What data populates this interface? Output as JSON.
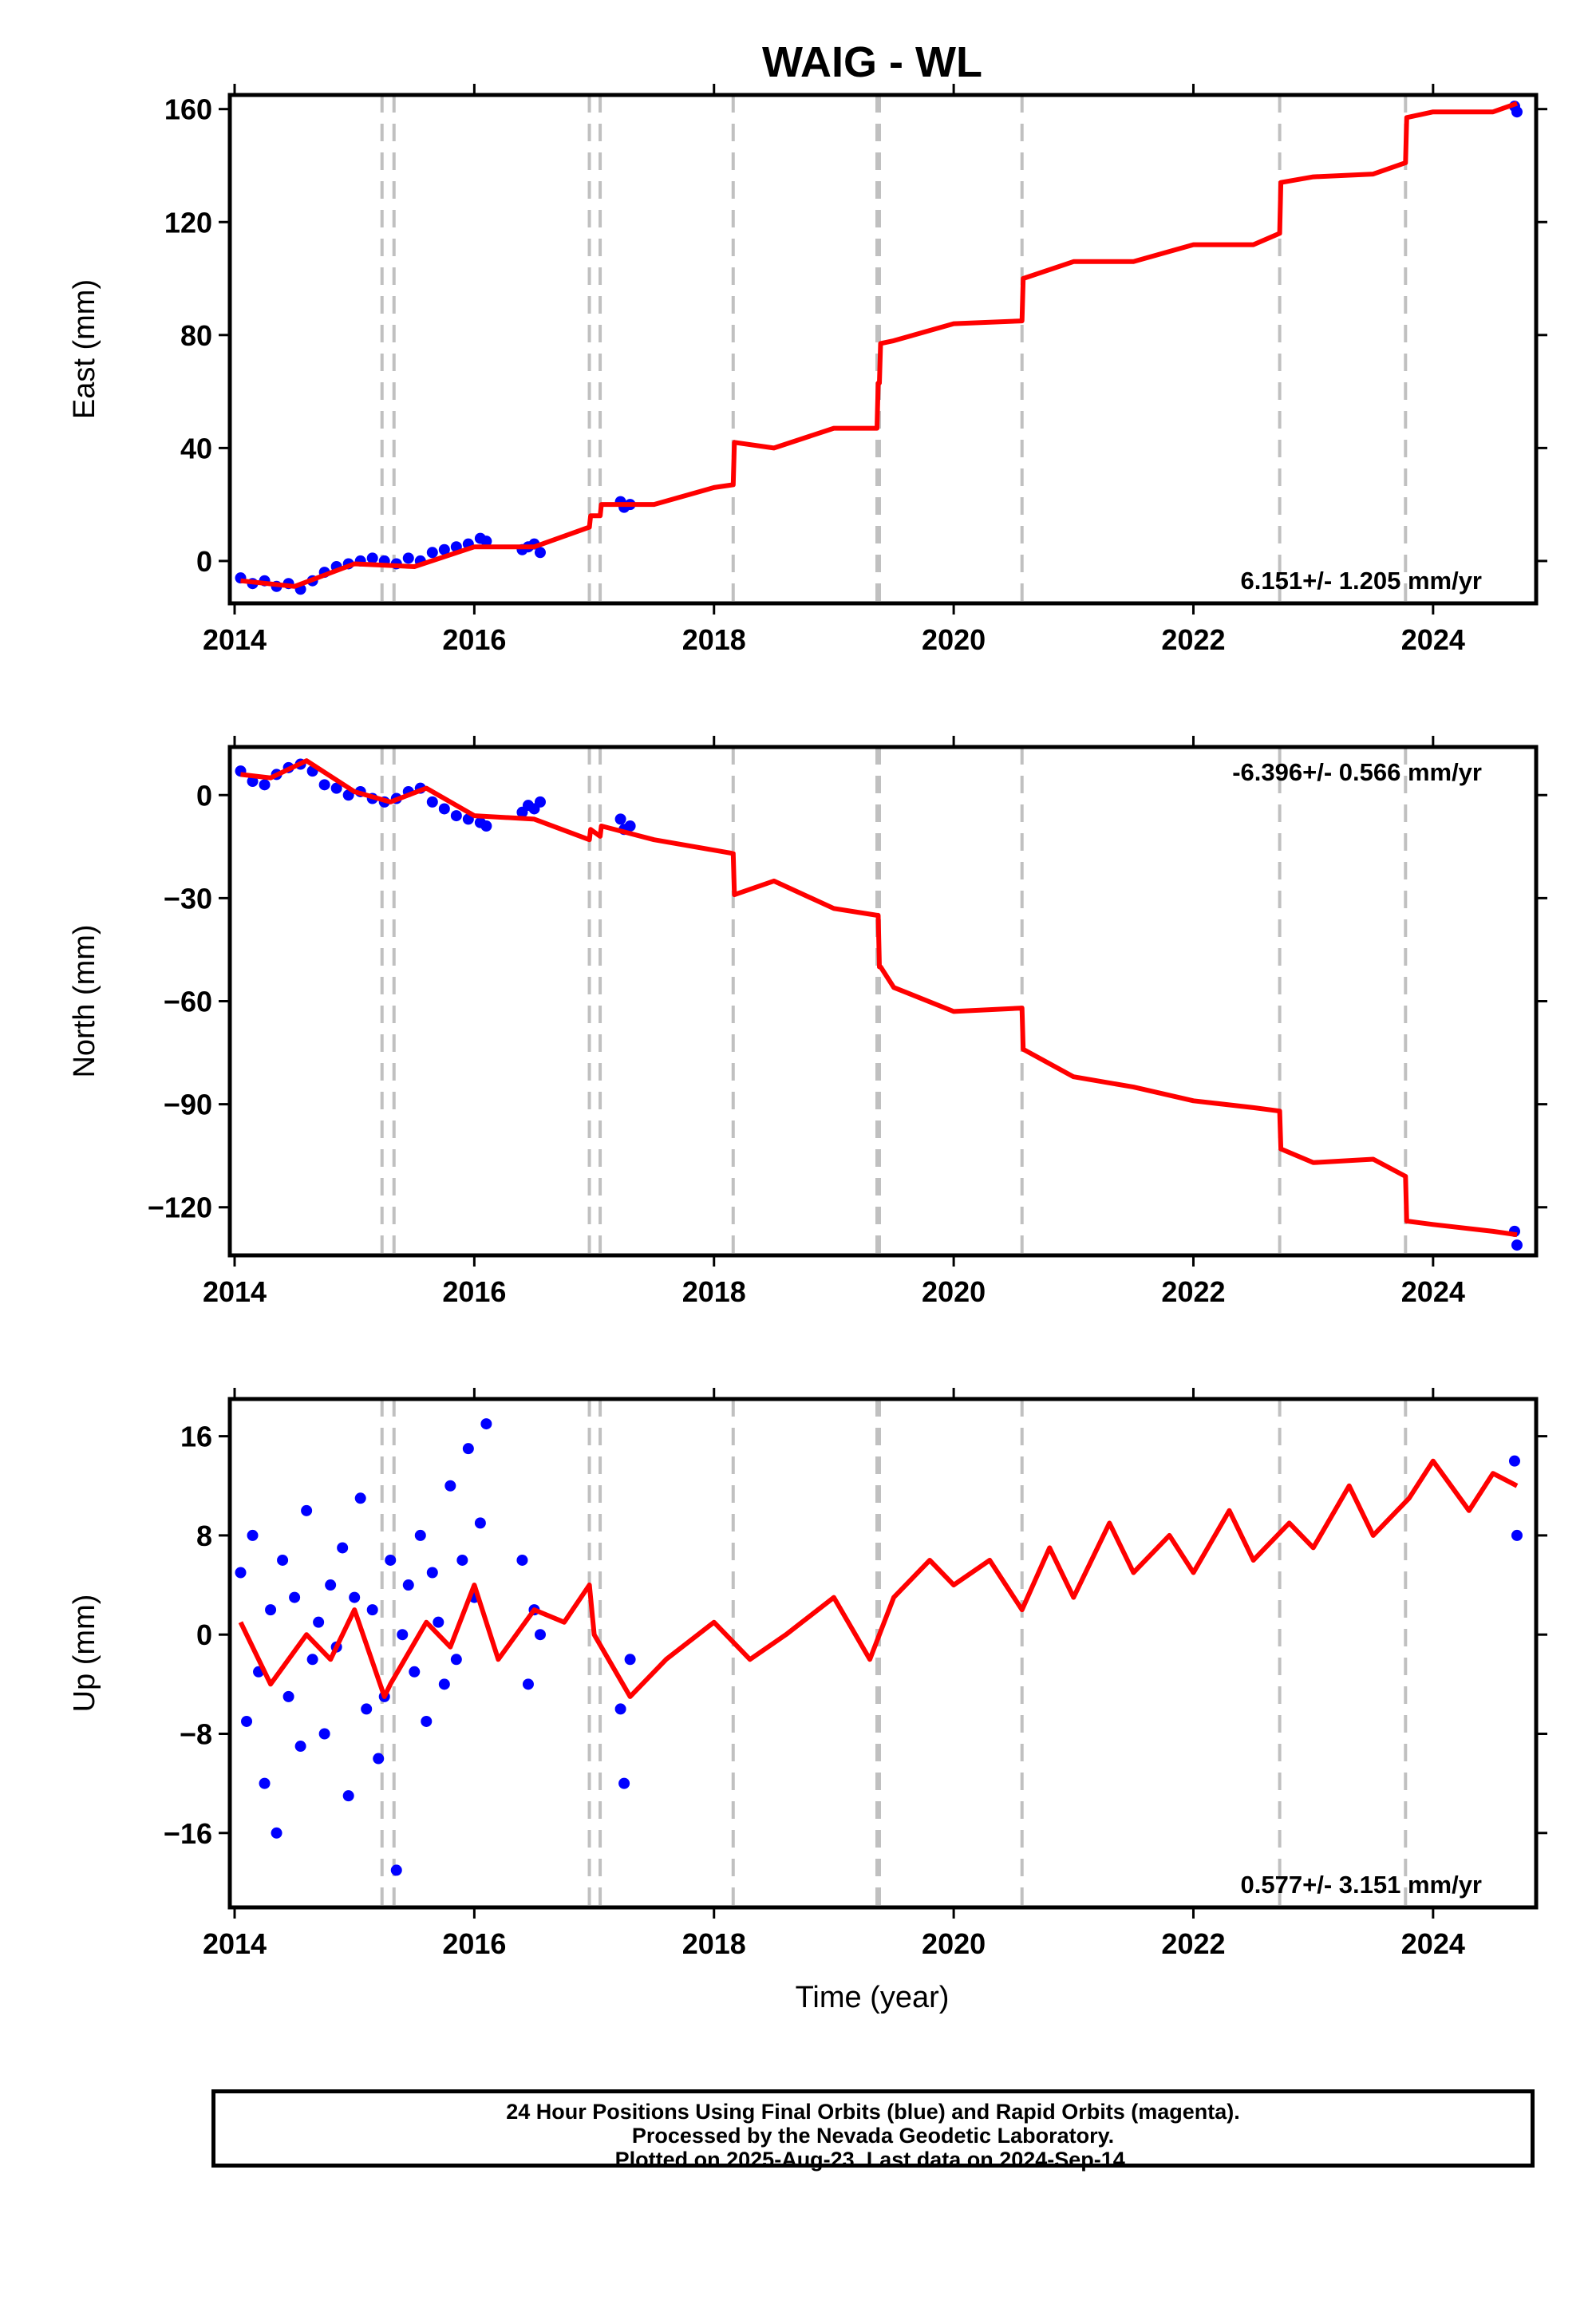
{
  "title": "WAIG - WL",
  "xlabel": "Time (year)",
  "colors": {
    "data": "#0000ff",
    "model": "#ff0000",
    "break": "#c0c0c0",
    "frame": "#000000"
  },
  "footer": {
    "line1": "24 Hour Positions Using Final Orbits (blue) and Rapid Orbits (magenta).",
    "line2": "Processed by the Nevada Geodetic Laboratory.",
    "line3": "Plotted on 2025-Aug-23. Last data on 2024-Sep-14."
  },
  "chart_data": [
    {
      "type": "scatter",
      "panel": "east",
      "ylabel": "East (mm)",
      "rate_text": "6.151+/- 1.205 mm/yr",
      "rate_position": "bottom-right",
      "xlim": [
        2013.96,
        2024.86
      ],
      "ylim": [
        -15,
        165
      ],
      "xticks": [
        2014,
        2016,
        2018,
        2020,
        2022,
        2024
      ],
      "yticks": [
        0,
        40,
        80,
        120,
        160
      ],
      "breaks": [
        2015.23,
        2015.33,
        2016.96,
        2017.05,
        2018.16,
        2019.36,
        2019.38,
        2020.57,
        2022.72,
        2023.77
      ],
      "model": {
        "x": [
          2014.05,
          2014.5,
          2015.0,
          2015.5,
          2016.0,
          2016.5,
          2016.96,
          2016.97,
          2017.05,
          2017.06,
          2017.5,
          2018.0,
          2018.16,
          2018.17,
          2018.5,
          2019.0,
          2019.36,
          2019.37,
          2019.38,
          2019.39,
          2019.5,
          2020.0,
          2020.57,
          2020.58,
          2021.0,
          2021.5,
          2022.0,
          2022.5,
          2022.72,
          2022.73,
          2023.0,
          2023.5,
          2023.77,
          2023.78,
          2024.0,
          2024.5,
          2024.7
        ],
        "y": [
          -7,
          -9,
          -1,
          -2,
          5,
          5,
          12,
          16,
          16,
          20,
          20,
          26,
          27,
          42,
          40,
          47,
          47,
          63,
          63,
          77,
          78,
          84,
          85,
          100,
          106,
          106,
          112,
          112,
          116,
          134,
          136,
          137,
          141,
          157,
          159,
          159,
          162
        ]
      },
      "points": {
        "x": [
          2014.05,
          2014.15,
          2014.25,
          2014.35,
          2014.45,
          2014.55,
          2014.65,
          2014.75,
          2014.85,
          2014.95,
          2015.05,
          2015.15,
          2015.25,
          2015.35,
          2015.45,
          2015.55,
          2015.65,
          2015.75,
          2015.85,
          2015.95,
          2016.05,
          2016.1,
          2016.4,
          2016.45,
          2016.5,
          2016.55,
          2017.22,
          2017.25,
          2017.3,
          2024.68,
          2024.7
        ],
        "y": [
          -6,
          -8,
          -7,
          -9,
          -8,
          -10,
          -7,
          -4,
          -2,
          -1,
          0,
          1,
          0,
          -1,
          1,
          0,
          3,
          4,
          5,
          6,
          8,
          7,
          4,
          5,
          6,
          3,
          21,
          19,
          20,
          161,
          159
        ]
      }
    },
    {
      "type": "scatter",
      "panel": "north",
      "ylabel": "North (mm)",
      "rate_text": "-6.396+/- 0.566 mm/yr",
      "rate_position": "top-right",
      "xlim": [
        2013.96,
        2024.86
      ],
      "ylim": [
        -134,
        14
      ],
      "xticks": [
        2014,
        2016,
        2018,
        2020,
        2022,
        2024
      ],
      "yticks": [
        0,
        -30,
        -60,
        -90,
        -120
      ],
      "breaks": [
        2015.23,
        2015.33,
        2016.96,
        2017.05,
        2018.16,
        2019.36,
        2019.38,
        2020.57,
        2022.72,
        2023.77
      ],
      "model": {
        "x": [
          2014.05,
          2014.3,
          2014.6,
          2015.0,
          2015.3,
          2015.6,
          2016.0,
          2016.5,
          2016.96,
          2016.97,
          2017.05,
          2017.06,
          2017.5,
          2018.16,
          2018.17,
          2018.5,
          2019.0,
          2019.36,
          2019.37,
          2019.38,
          2019.39,
          2019.5,
          2020.0,
          2020.57,
          2020.58,
          2021.0,
          2021.5,
          2022.0,
          2022.5,
          2022.72,
          2022.73,
          2023.0,
          2023.5,
          2023.77,
          2023.78,
          2024.0,
          2024.5,
          2024.7
        ],
        "y": [
          6,
          5,
          10,
          1,
          -2,
          2,
          -6,
          -7,
          -13,
          -10,
          -12,
          -9,
          -13,
          -17,
          -29,
          -25,
          -33,
          -35,
          -35,
          -50,
          -50,
          -56,
          -63,
          -62,
          -74,
          -82,
          -85,
          -89,
          -91,
          -92,
          -103,
          -107,
          -106,
          -111,
          -124,
          -125,
          -127,
          -128
        ]
      },
      "points": {
        "x": [
          2014.05,
          2014.15,
          2014.25,
          2014.35,
          2014.45,
          2014.55,
          2014.65,
          2014.75,
          2014.85,
          2014.95,
          2015.05,
          2015.15,
          2015.25,
          2015.35,
          2015.45,
          2015.55,
          2015.65,
          2015.75,
          2015.85,
          2015.95,
          2016.05,
          2016.1,
          2016.4,
          2016.45,
          2016.5,
          2016.55,
          2017.22,
          2017.25,
          2017.3,
          2024.68,
          2024.7
        ],
        "y": [
          7,
          4,
          3,
          6,
          8,
          9,
          7,
          3,
          2,
          0,
          1,
          -1,
          -2,
          -1,
          1,
          2,
          -2,
          -4,
          -6,
          -7,
          -8,
          -9,
          -5,
          -3,
          -4,
          -2,
          -7,
          -10,
          -9,
          -127,
          -131
        ]
      }
    },
    {
      "type": "scatter",
      "panel": "up",
      "ylabel": "Up (mm)",
      "rate_text": "0.577+/- 3.151 mm/yr",
      "rate_position": "bottom-right",
      "xlim": [
        2013.96,
        2024.86
      ],
      "ylim": [
        -22,
        19
      ],
      "xticks": [
        2014,
        2016,
        2018,
        2020,
        2022,
        2024
      ],
      "yticks": [
        16,
        8,
        0,
        -8,
        -16
      ],
      "breaks": [
        2015.23,
        2015.33,
        2016.96,
        2017.05,
        2018.16,
        2019.36,
        2019.38,
        2020.57,
        2022.72,
        2023.77
      ],
      "model": {
        "x": [
          2014.05,
          2014.3,
          2014.6,
          2014.8,
          2015.0,
          2015.25,
          2015.3,
          2015.6,
          2015.8,
          2016.0,
          2016.2,
          2016.5,
          2016.75,
          2016.96,
          2017.0,
          2017.3,
          2017.6,
          2018.0,
          2018.3,
          2018.6,
          2019.0,
          2019.3,
          2019.5,
          2019.8,
          2020.0,
          2020.3,
          2020.57,
          2020.8,
          2021.0,
          2021.3,
          2021.5,
          2021.8,
          2022.0,
          2022.3,
          2022.5,
          2022.8,
          2023.0,
          2023.3,
          2023.5,
          2023.8,
          2024.0,
          2024.3,
          2024.5,
          2024.7
        ],
        "y": [
          1,
          -4,
          0,
          -2,
          2,
          -5,
          -4,
          1,
          -1,
          4,
          -2,
          2,
          1,
          4,
          0,
          -5,
          -2,
          1,
          -2,
          0,
          3,
          -2,
          3,
          6,
          4,
          6,
          2,
          7,
          3,
          9,
          5,
          8,
          5,
          10,
          6,
          9,
          7,
          12,
          8,
          11,
          14,
          10,
          13,
          12
        ]
      },
      "points": {
        "x": [
          2014.05,
          2014.1,
          2014.15,
          2014.2,
          2014.25,
          2014.3,
          2014.35,
          2014.4,
          2014.45,
          2014.5,
          2014.55,
          2014.6,
          2014.65,
          2014.7,
          2014.75,
          2014.8,
          2014.85,
          2014.9,
          2014.95,
          2015.0,
          2015.05,
          2015.1,
          2015.15,
          2015.2,
          2015.25,
          2015.3,
          2015.35,
          2015.4,
          2015.45,
          2015.5,
          2015.55,
          2015.6,
          2015.65,
          2015.7,
          2015.75,
          2015.8,
          2015.85,
          2015.9,
          2015.95,
          2016.0,
          2016.05,
          2016.1,
          2016.4,
          2016.45,
          2016.5,
          2016.55,
          2017.22,
          2017.25,
          2017.3,
          2024.68,
          2024.7
        ],
        "y": [
          5,
          -7,
          8,
          -3,
          -12,
          2,
          -16,
          6,
          -5,
          3,
          -9,
          10,
          -2,
          1,
          -8,
          4,
          -1,
          7,
          -13,
          3,
          11,
          -6,
          2,
          -10,
          -5,
          6,
          -19,
          0,
          4,
          -3,
          8,
          -7,
          5,
          1,
          -4,
          12,
          -2,
          6,
          15,
          3,
          9,
          17,
          6,
          -4,
          2,
          0,
          -6,
          -12,
          -2,
          14,
          8
        ]
      }
    }
  ]
}
